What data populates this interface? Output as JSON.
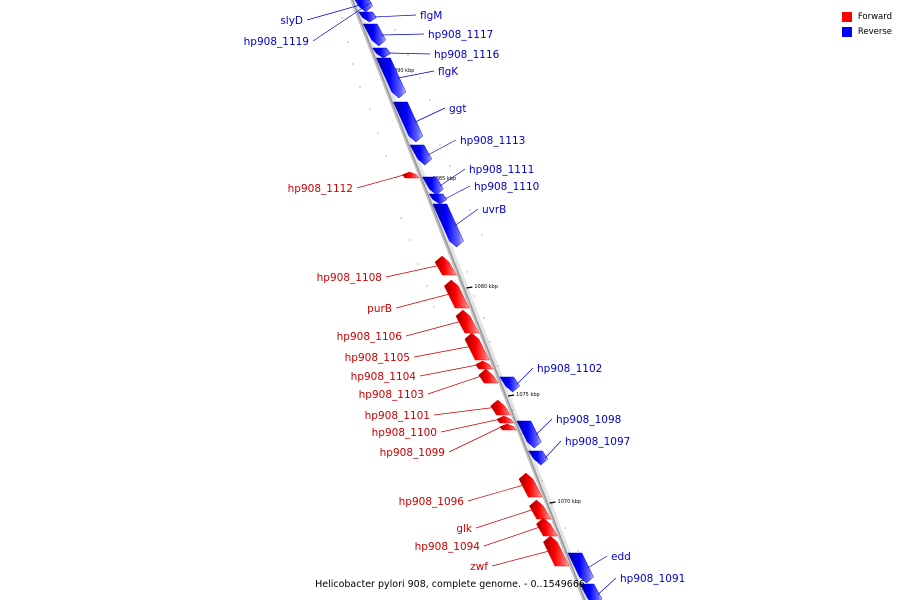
{
  "colors": {
    "forward": "#ff0000",
    "reverse": "#0000ff",
    "backbone": "#a0a0a0",
    "forward_label": "#cc0000",
    "reverse_label": "#0000cc"
  },
  "legend": {
    "forward": {
      "label": "Forward",
      "color": "#ff0000"
    },
    "reverse": {
      "label": "Reverse",
      "color": "#0000ff"
    }
  },
  "caption": {
    "prefix": "Helicobacter pylori 908, complete genome. - 0..",
    "end": "1549666"
  },
  "ticks": [
    "1090 kbp",
    "1085 kbp",
    "1080 kbp",
    "1075 kbp",
    "1070 kbp"
  ],
  "genes": [
    {
      "label": "slyD",
      "strand": "reverse"
    },
    {
      "label": "hp908_1119",
      "strand": "reverse"
    },
    {
      "label": "flgM",
      "strand": "reverse"
    },
    {
      "label": "hp908_1117",
      "strand": "reverse"
    },
    {
      "label": "hp908_1116",
      "strand": "reverse"
    },
    {
      "label": "flgK",
      "strand": "reverse"
    },
    {
      "label": "ggt",
      "strand": "reverse"
    },
    {
      "label": "hp908_1113",
      "strand": "reverse"
    },
    {
      "label": "hp908_1112",
      "strand": "forward"
    },
    {
      "label": "hp908_1111",
      "strand": "reverse"
    },
    {
      "label": "hp908_1110",
      "strand": "reverse"
    },
    {
      "label": "uvrB",
      "strand": "reverse"
    },
    {
      "label": "hp908_1108",
      "strand": "forward"
    },
    {
      "label": "purB",
      "strand": "forward"
    },
    {
      "label": "hp908_1106",
      "strand": "forward"
    },
    {
      "label": "hp908_1105",
      "strand": "forward"
    },
    {
      "label": "hp908_1104",
      "strand": "forward"
    },
    {
      "label": "hp908_1103",
      "strand": "forward"
    },
    {
      "label": "hp908_1102",
      "strand": "reverse"
    },
    {
      "label": "hp908_1101",
      "strand": "forward"
    },
    {
      "label": "hp908_1100",
      "strand": "forward"
    },
    {
      "label": "hp908_1099",
      "strand": "forward"
    },
    {
      "label": "hp908_1098",
      "strand": "reverse"
    },
    {
      "label": "hp908_1097",
      "strand": "reverse"
    },
    {
      "label": "hp908_1096",
      "strand": "forward"
    },
    {
      "label": "glk",
      "strand": "forward"
    },
    {
      "label": "hp908_1094",
      "strand": "forward"
    },
    {
      "label": "zwf",
      "strand": "forward"
    },
    {
      "label": "edd",
      "strand": "reverse"
    },
    {
      "label": "hp908_1091",
      "strand": "reverse"
    }
  ]
}
